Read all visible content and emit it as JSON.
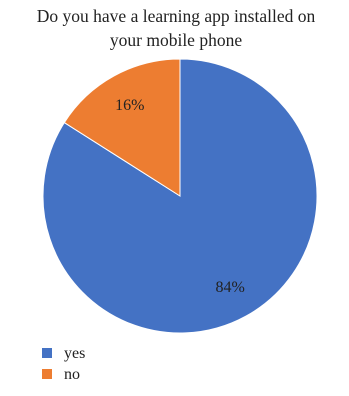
{
  "chart_data": {
    "type": "pie",
    "title_lines": [
      "Do you have a learning app installed on",
      "your mobile phone"
    ],
    "categories": [
      "yes",
      "no"
    ],
    "values": [
      84,
      16
    ],
    "labels": [
      "84%",
      "16%"
    ],
    "colors": [
      "#4472C4",
      "#ED7D31"
    ],
    "legend_position": "bottom-left"
  }
}
